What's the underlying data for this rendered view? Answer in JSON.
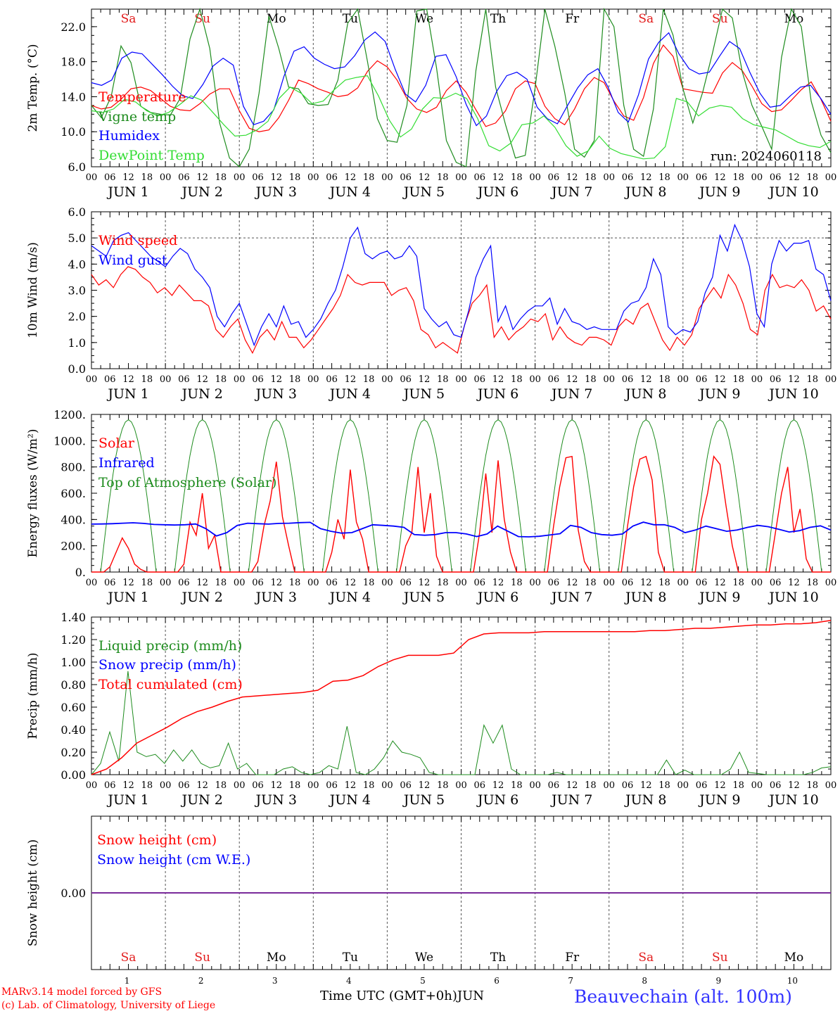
{
  "run_label": "run: 2024060118",
  "days": [
    "Sa",
    "Su",
    "Mo",
    "Tu",
    "We",
    "Th",
    "Fr",
    "Sa",
    "Su",
    "Mo"
  ],
  "day_colors": [
    "#e21b1b",
    "#e21b1b",
    "#000000",
    "#000000",
    "#000000",
    "#000000",
    "#000000",
    "#e21b1b",
    "#e21b1b",
    "#000000"
  ],
  "date_labels": [
    "JUN  1",
    "JUN  2",
    "JUN  3",
    "JUN  4",
    "JUN  5",
    "JUN  6",
    "JUN  7",
    "JUN  8",
    "JUN  9",
    "JUN 10"
  ],
  "hour_labels": [
    "00",
    "06",
    "12",
    "18"
  ],
  "last_hour_label": "00",
  "bottom_day_numbers": [
    "1",
    "2",
    "3",
    "4",
    "5",
    "6",
    "7",
    "8",
    "9",
    "10"
  ],
  "footer": {
    "credit_line1": "MARv3.14 model forced by GFS",
    "credit_line2": "(c) Lab. of Climatology, University of Liege",
    "xlabel": "Time UTC (GMT+0h)",
    "month": "JUN",
    "station": "Beauvechain (alt. 100m)"
  },
  "colors": {
    "red": "#ff0000",
    "green": "#1e8c1e",
    "blue": "#0000ff",
    "lightgreen": "#33dd33",
    "purple": "#7a2a9a",
    "axis": "#000000",
    "dash": "#555555"
  },
  "chart_data": [
    {
      "id": "temp",
      "type": "line",
      "ylabel": "2m Temp. (°C)",
      "ylim": [
        6,
        24
      ],
      "yticks": [
        6,
        10,
        14,
        18,
        22
      ],
      "ytick_labels": [
        "6.0",
        "10.0",
        "14.0",
        "18.0",
        "22.0"
      ],
      "show_run": true,
      "series": [
        {
          "name": "Temperature",
          "color": "#ff0000",
          "values": [
            13,
            12.6,
            12.8,
            13.7,
            14.9,
            15.1,
            14.7,
            13.8,
            12.9,
            12.5,
            12.4,
            13.2,
            14.3,
            14.9,
            14.9,
            12.4,
            10.4,
            10,
            10.2,
            11.6,
            13.6,
            15.9,
            15.5,
            14.9,
            14.5,
            14,
            14.2,
            15,
            16.9,
            18.1,
            17.4,
            15.9,
            13.8,
            12.6,
            12.2,
            12.8,
            14.7,
            15.8,
            14.5,
            12.5,
            10.6,
            11,
            12.4,
            14.9,
            15.8,
            15.5,
            12.9,
            11.5,
            10.8,
            12.6,
            14.9,
            16.2,
            15.6,
            13.5,
            11.8,
            11.3,
            13.9,
            17.8,
            19.9,
            18.6,
            14.9,
            14.7,
            14.5,
            14.4,
            16.7,
            17.9,
            17,
            15.2,
            13.2,
            12.3,
            12.5,
            13.6,
            14.8,
            15.7,
            13.7,
            11.2
          ]
        },
        {
          "name": "Vigne temp",
          "color": "#1e8c1e",
          "values": [
            13,
            11.6,
            14,
            19.8,
            17.9,
            12.9,
            12.2,
            12,
            11.9,
            13.8,
            20.6,
            24,
            19.5,
            11,
            7,
            6,
            8,
            14.4,
            23.2,
            19.5,
            15.1,
            14.9,
            13.2,
            13,
            13.1,
            15.9,
            22.4,
            24,
            18,
            11.5,
            9,
            8.8,
            13,
            23.8,
            24,
            17.3,
            9,
            6.5,
            6,
            17,
            24,
            15.1,
            10.8,
            7,
            7.3,
            15,
            24,
            19.8,
            14.5,
            8,
            7.1,
            9,
            24,
            22,
            13,
            8,
            7.2,
            12.6,
            24,
            21,
            14.9,
            11,
            14.5,
            19,
            24,
            23,
            16.9,
            13,
            10.6,
            8,
            18.5,
            24,
            22,
            13.5,
            9.6,
            7.6
          ]
        },
        {
          "name": "Humidex",
          "color": "#0000ff",
          "values": [
            15.6,
            15.3,
            15.9,
            18.4,
            19.1,
            18.9,
            17.7,
            16.5,
            15.2,
            14.1,
            13.8,
            15.4,
            17.5,
            18.4,
            17.6,
            12.9,
            10.8,
            11.2,
            12.5,
            16.3,
            19.2,
            19.7,
            18.4,
            17.7,
            17.2,
            17.4,
            18.7,
            20.5,
            21.4,
            20.3,
            17.1,
            14.3,
            13.4,
            15.3,
            18.6,
            18.8,
            16.3,
            13.1,
            10.7,
            11.8,
            14.6,
            16.4,
            16.8,
            16,
            12.8,
            11.5,
            10.9,
            13,
            15,
            16.5,
            17.2,
            15.1,
            12.2,
            11.1,
            14.2,
            18.3,
            20.2,
            21.3,
            18.9,
            17.2,
            16.6,
            16.8,
            18.6,
            20.3,
            19.5,
            16.8,
            14.4,
            12.8,
            13,
            14.1,
            15.1,
            15.3,
            13.8,
            12
          ]
        },
        {
          "name": "DewPoint Temp",
          "color": "#33dd33",
          "values": [
            12.4,
            12.2,
            12.6,
            13.7,
            13.4,
            12.4,
            11.8,
            12.2,
            13.1,
            14.1,
            13.6,
            12.2,
            10.8,
            9.5,
            9.6,
            10.2,
            11.2,
            13.8,
            15.1,
            14.4,
            13.2,
            13.5,
            14.8,
            15.9,
            16.2,
            16.4,
            14.1,
            11.3,
            9.4,
            10.3,
            12.6,
            13.9,
            13.8,
            14.4,
            13.8,
            11.5,
            8.4,
            7.8,
            8.7,
            10.8,
            11,
            11.8,
            10.5,
            8.4,
            7.2,
            7.8,
            9.5,
            8.1,
            7.5,
            7.2,
            6.9,
            7,
            8.3,
            13.8,
            13.4,
            11.8,
            12.7,
            13,
            12.8,
            11.5,
            10.8,
            10.5,
            10.2,
            9.5,
            8.8,
            8.4,
            8.2,
            8.9
          ]
        }
      ]
    },
    {
      "id": "wind",
      "type": "line",
      "ylabel": "10m Wind (m/s)",
      "ylim": [
        0,
        6
      ],
      "yticks": [
        0,
        1,
        2,
        3,
        4,
        5,
        6
      ],
      "ytick_labels": [
        "0.0",
        "1.0",
        "2.0",
        "3.0",
        "4.0",
        "5.0",
        "6.0"
      ],
      "hline": 5,
      "series": [
        {
          "name": "Wind speed",
          "color": "#ff0000",
          "values": [
            3.6,
            3.2,
            3.4,
            3.1,
            3.6,
            3.9,
            3.8,
            3.5,
            3.3,
            2.9,
            3.1,
            2.8,
            3.2,
            2.9,
            2.6,
            2.6,
            2.4,
            1.5,
            1.2,
            1.6,
            1.9,
            1.1,
            0.6,
            1.2,
            1.5,
            1.1,
            1.8,
            1.2,
            1.2,
            0.8,
            1.1,
            1.5,
            1.9,
            2.3,
            2.8,
            3.6,
            3.3,
            3.2,
            3.3,
            3.3,
            3.3,
            2.8,
            3,
            3.1,
            2.6,
            1.5,
            1.3,
            0.8,
            1,
            0.8,
            0.6,
            1.7,
            2.5,
            2.8,
            3.2,
            1.2,
            1.6,
            1.1,
            1.4,
            1.6,
            1.9,
            1.8,
            2.1,
            1.1,
            1.6,
            1.2,
            1,
            0.9,
            1.2,
            1.2,
            1.1,
            0.9,
            1.6,
            1.9,
            1.7,
            2.3,
            2.5,
            1.8,
            1.1,
            0.7,
            1.2,
            0.9,
            1.3,
            2.3,
            2.7,
            3.1,
            2.7,
            3.6,
            3.2,
            2.5,
            1.5,
            1.3,
            3,
            3.6,
            3.1,
            3.2,
            3.1,
            3.4,
            3,
            2.2,
            2.4,
            1.9
          ]
        },
        {
          "name": "Wind gust",
          "color": "#0000ff",
          "values": [
            4.7,
            4.5,
            4.3,
            4.9,
            5.1,
            5.2,
            4.9,
            4.6,
            4.3,
            4.1,
            3.9,
            4.3,
            4.6,
            4.4,
            3.8,
            3.5,
            3.1,
            2,
            1.6,
            2.1,
            2.5,
            1.7,
            0.9,
            1.6,
            2.1,
            1.6,
            2.4,
            1.7,
            1.8,
            1.2,
            1.5,
            1.9,
            2.5,
            3,
            3.9,
            5,
            5.4,
            4.4,
            4.2,
            4.4,
            4.5,
            4.2,
            4.3,
            4.7,
            4.3,
            2.3,
            1.9,
            1.6,
            1.8,
            1.3,
            1.2,
            2.2,
            3.5,
            4.2,
            4.7,
            1.8,
            2.4,
            1.5,
            1.9,
            2.2,
            2.4,
            2.4,
            2.7,
            1.7,
            2.3,
            1.8,
            1.7,
            1.5,
            1.6,
            1.5,
            1.5,
            1.5,
            2.2,
            2.5,
            2.6,
            3.1,
            4.2,
            3.6,
            1.6,
            1.3,
            1.5,
            1.4,
            1.8,
            2.9,
            3.5,
            5.1,
            4.5,
            5.5,
            4.9,
            3.9,
            2.1,
            1.6,
            4,
            4.9,
            4.5,
            4.8,
            4.8,
            4.9,
            3.8,
            3.6,
            2.6
          ]
        }
      ]
    },
    {
      "id": "energy",
      "type": "line",
      "ylabel": "Energy fluxes (W/m²)",
      "ylim": [
        0,
        1200
      ],
      "yticks": [
        0,
        200,
        400,
        600,
        800,
        1000,
        1200
      ],
      "ytick_labels": [
        "0.",
        "200.",
        "400.",
        "600.",
        "800.",
        "1000.",
        "1200."
      ],
      "series": [
        {
          "name": "Solar",
          "color": "#ff0000",
          "values_note": "see daily_solar"
        },
        {
          "name": "Infrared",
          "color": "#0000ff",
          "values_note": "see infrared"
        },
        {
          "name": "Top of Atmosphere (Solar)",
          "color": "#1e8c1e",
          "values_note": "daily peak 1160"
        }
      ],
      "toa_peak": 1160,
      "daily_solar": [
        [
          0,
          0,
          0,
          40,
          150,
          260,
          180,
          60,
          20,
          0,
          0,
          0
        ],
        [
          0,
          0,
          0,
          60,
          380,
          280,
          600,
          180,
          280,
          0,
          0,
          0
        ],
        [
          0,
          0,
          0,
          80,
          350,
          540,
          840,
          420,
          200,
          0,
          0,
          0
        ],
        [
          0,
          0,
          0,
          150,
          400,
          250,
          780,
          380,
          250,
          0,
          0,
          0
        ],
        [
          0,
          0,
          0,
          200,
          300,
          800,
          300,
          600,
          120,
          0,
          0,
          0
        ],
        [
          0,
          0,
          0,
          300,
          750,
          300,
          850,
          400,
          150,
          0,
          0,
          0
        ],
        [
          0,
          0,
          0,
          350,
          650,
          870,
          880,
          320,
          80,
          0,
          0,
          0
        ],
        [
          0,
          0,
          0,
          350,
          650,
          860,
          880,
          700,
          150,
          0,
          0,
          0
        ],
        [
          0,
          0,
          0,
          400,
          600,
          880,
          820,
          500,
          200,
          0,
          0,
          0
        ],
        [
          0,
          0,
          0,
          300,
          600,
          800,
          300,
          480,
          100,
          0,
          0,
          0
        ]
      ],
      "infrared": [
        365,
        366,
        368,
        372,
        375,
        370,
        362,
        360,
        358,
        360,
        366,
        330,
        275,
        300,
        355,
        372,
        368,
        365,
        370,
        372,
        376,
        378,
        330,
        310,
        296,
        300,
        330,
        360,
        355,
        350,
        340,
        285,
        280,
        285,
        300,
        300,
        290,
        270,
        290,
        350,
        310,
        270,
        268,
        272,
        282,
        292,
        355,
        340,
        300,
        285,
        280,
        290,
        350,
        380,
        360,
        360,
        340,
        300,
        320,
        350,
        330,
        310,
        320,
        340,
        355,
        345,
        325,
        305,
        315,
        340,
        352,
        320
      ]
    },
    {
      "id": "precip",
      "type": "line",
      "ylabel": "Precip (mm/h)",
      "ylim": [
        0,
        1.4
      ],
      "yticks": [
        0,
        0.2,
        0.4,
        0.6,
        0.8,
        1.0,
        1.2,
        1.4
      ],
      "ytick_labels": [
        "0.00",
        "0.20",
        "0.40",
        "0.60",
        "0.80",
        "1.00",
        "1.20",
        "1.40"
      ],
      "series": [
        {
          "name": "Liquid precip (mm/h)",
          "color": "#1e8c1e",
          "values": [
            0,
            0.1,
            0.38,
            0.12,
            0.92,
            0.2,
            0.16,
            0.18,
            0.1,
            0.22,
            0.12,
            0.22,
            0.1,
            0.06,
            0.08,
            0.28,
            0.05,
            0.1,
            0,
            0,
            0,
            0.05,
            0.07,
            0.02,
            0,
            0.02,
            0.08,
            0.05,
            0.43,
            0.02,
            0,
            0.05,
            0.15,
            0.3,
            0.2,
            0.18,
            0.15,
            0.02,
            0,
            0,
            0,
            0,
            0,
            0.44,
            0.28,
            0.44,
            0.05,
            0,
            0,
            0,
            0,
            0.02,
            0,
            0,
            0,
            0,
            0,
            0,
            0,
            0,
            0,
            0,
            0,
            0.13,
            0,
            0.04,
            0,
            0,
            0,
            0,
            0.05,
            0.2,
            0.02,
            0.01,
            0,
            0,
            0,
            0,
            0,
            0.02,
            0.06,
            0.07
          ]
        },
        {
          "name": "Snow precip (mm/h)",
          "color": "#0000ff",
          "values": []
        },
        {
          "name": "Total cumulated (cm)",
          "color": "#ff0000",
          "values": [
            0,
            0.05,
            0.15,
            0.28,
            0.35,
            0.42,
            0.5,
            0.56,
            0.6,
            0.65,
            0.69,
            0.7,
            0.71,
            0.72,
            0.73,
            0.75,
            0.83,
            0.84,
            0.88,
            0.96,
            1.02,
            1.06,
            1.06,
            1.06,
            1.08,
            1.2,
            1.25,
            1.26,
            1.26,
            1.26,
            1.27,
            1.27,
            1.27,
            1.27,
            1.27,
            1.27,
            1.27,
            1.28,
            1.28,
            1.29,
            1.3,
            1.3,
            1.31,
            1.32,
            1.33,
            1.33,
            1.34,
            1.34,
            1.35,
            1.37
          ]
        }
      ]
    },
    {
      "id": "snow",
      "type": "line",
      "ylabel": "Snow height (cm)",
      "ylim": [
        -1,
        1
      ],
      "yticks": [
        0
      ],
      "ytick_labels": [
        "0.00"
      ],
      "series": [
        {
          "name": "Snow height (cm)",
          "color": "#ff0000",
          "values": [
            0,
            0
          ]
        },
        {
          "name": "Snow height (cm W.E.)",
          "color": "#0000ff",
          "values": [
            0,
            0
          ]
        }
      ]
    }
  ]
}
